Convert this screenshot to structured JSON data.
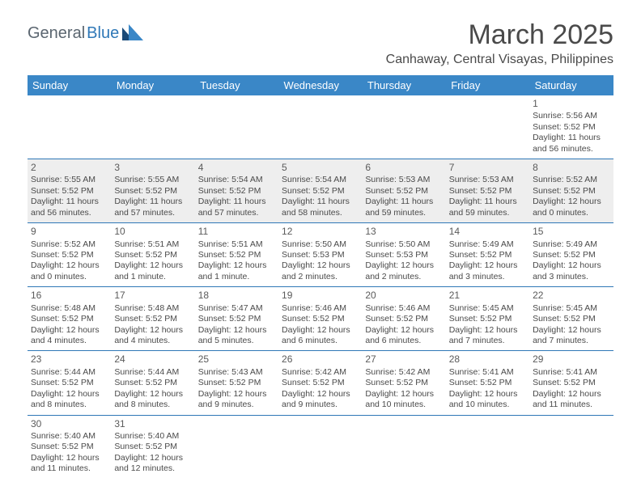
{
  "logo": {
    "text1": "General",
    "text2": "Blue",
    "mark_dark": "#1a4a78",
    "mark_light": "#3a87c7"
  },
  "title": "March 2025",
  "subtitle": "Canhaway, Central Visayas, Philippines",
  "colors": {
    "header_bg": "#3a87c7",
    "header_text": "#ffffff",
    "border": "#2f78b7",
    "blank_bg": "#eeeeee",
    "body_text": "#4a4a4a"
  },
  "weekdays": [
    "Sunday",
    "Monday",
    "Tuesday",
    "Wednesday",
    "Thursday",
    "Friday",
    "Saturday"
  ],
  "weeks": [
    [
      null,
      null,
      null,
      null,
      null,
      null,
      {
        "day": "1",
        "sunrise": "Sunrise: 5:56 AM",
        "sunset": "Sunset: 5:52 PM",
        "daylight": "Daylight: 11 hours and 56 minutes."
      }
    ],
    [
      {
        "day": "2",
        "sunrise": "Sunrise: 5:55 AM",
        "sunset": "Sunset: 5:52 PM",
        "daylight": "Daylight: 11 hours and 56 minutes."
      },
      {
        "day": "3",
        "sunrise": "Sunrise: 5:55 AM",
        "sunset": "Sunset: 5:52 PM",
        "daylight": "Daylight: 11 hours and 57 minutes."
      },
      {
        "day": "4",
        "sunrise": "Sunrise: 5:54 AM",
        "sunset": "Sunset: 5:52 PM",
        "daylight": "Daylight: 11 hours and 57 minutes."
      },
      {
        "day": "5",
        "sunrise": "Sunrise: 5:54 AM",
        "sunset": "Sunset: 5:52 PM",
        "daylight": "Daylight: 11 hours and 58 minutes."
      },
      {
        "day": "6",
        "sunrise": "Sunrise: 5:53 AM",
        "sunset": "Sunset: 5:52 PM",
        "daylight": "Daylight: 11 hours and 59 minutes."
      },
      {
        "day": "7",
        "sunrise": "Sunrise: 5:53 AM",
        "sunset": "Sunset: 5:52 PM",
        "daylight": "Daylight: 11 hours and 59 minutes."
      },
      {
        "day": "8",
        "sunrise": "Sunrise: 5:52 AM",
        "sunset": "Sunset: 5:52 PM",
        "daylight": "Daylight: 12 hours and 0 minutes."
      }
    ],
    [
      {
        "day": "9",
        "sunrise": "Sunrise: 5:52 AM",
        "sunset": "Sunset: 5:52 PM",
        "daylight": "Daylight: 12 hours and 0 minutes."
      },
      {
        "day": "10",
        "sunrise": "Sunrise: 5:51 AM",
        "sunset": "Sunset: 5:52 PM",
        "daylight": "Daylight: 12 hours and 1 minute."
      },
      {
        "day": "11",
        "sunrise": "Sunrise: 5:51 AM",
        "sunset": "Sunset: 5:52 PM",
        "daylight": "Daylight: 12 hours and 1 minute."
      },
      {
        "day": "12",
        "sunrise": "Sunrise: 5:50 AM",
        "sunset": "Sunset: 5:53 PM",
        "daylight": "Daylight: 12 hours and 2 minutes."
      },
      {
        "day": "13",
        "sunrise": "Sunrise: 5:50 AM",
        "sunset": "Sunset: 5:53 PM",
        "daylight": "Daylight: 12 hours and 2 minutes."
      },
      {
        "day": "14",
        "sunrise": "Sunrise: 5:49 AM",
        "sunset": "Sunset: 5:52 PM",
        "daylight": "Daylight: 12 hours and 3 minutes."
      },
      {
        "day": "15",
        "sunrise": "Sunrise: 5:49 AM",
        "sunset": "Sunset: 5:52 PM",
        "daylight": "Daylight: 12 hours and 3 minutes."
      }
    ],
    [
      {
        "day": "16",
        "sunrise": "Sunrise: 5:48 AM",
        "sunset": "Sunset: 5:52 PM",
        "daylight": "Daylight: 12 hours and 4 minutes."
      },
      {
        "day": "17",
        "sunrise": "Sunrise: 5:48 AM",
        "sunset": "Sunset: 5:52 PM",
        "daylight": "Daylight: 12 hours and 4 minutes."
      },
      {
        "day": "18",
        "sunrise": "Sunrise: 5:47 AM",
        "sunset": "Sunset: 5:52 PM",
        "daylight": "Daylight: 12 hours and 5 minutes."
      },
      {
        "day": "19",
        "sunrise": "Sunrise: 5:46 AM",
        "sunset": "Sunset: 5:52 PM",
        "daylight": "Daylight: 12 hours and 6 minutes."
      },
      {
        "day": "20",
        "sunrise": "Sunrise: 5:46 AM",
        "sunset": "Sunset: 5:52 PM",
        "daylight": "Daylight: 12 hours and 6 minutes."
      },
      {
        "day": "21",
        "sunrise": "Sunrise: 5:45 AM",
        "sunset": "Sunset: 5:52 PM",
        "daylight": "Daylight: 12 hours and 7 minutes."
      },
      {
        "day": "22",
        "sunrise": "Sunrise: 5:45 AM",
        "sunset": "Sunset: 5:52 PM",
        "daylight": "Daylight: 12 hours and 7 minutes."
      }
    ],
    [
      {
        "day": "23",
        "sunrise": "Sunrise: 5:44 AM",
        "sunset": "Sunset: 5:52 PM",
        "daylight": "Daylight: 12 hours and 8 minutes."
      },
      {
        "day": "24",
        "sunrise": "Sunrise: 5:44 AM",
        "sunset": "Sunset: 5:52 PM",
        "daylight": "Daylight: 12 hours and 8 minutes."
      },
      {
        "day": "25",
        "sunrise": "Sunrise: 5:43 AM",
        "sunset": "Sunset: 5:52 PM",
        "daylight": "Daylight: 12 hours and 9 minutes."
      },
      {
        "day": "26",
        "sunrise": "Sunrise: 5:42 AM",
        "sunset": "Sunset: 5:52 PM",
        "daylight": "Daylight: 12 hours and 9 minutes."
      },
      {
        "day": "27",
        "sunrise": "Sunrise: 5:42 AM",
        "sunset": "Sunset: 5:52 PM",
        "daylight": "Daylight: 12 hours and 10 minutes."
      },
      {
        "day": "28",
        "sunrise": "Sunrise: 5:41 AM",
        "sunset": "Sunset: 5:52 PM",
        "daylight": "Daylight: 12 hours and 10 minutes."
      },
      {
        "day": "29",
        "sunrise": "Sunrise: 5:41 AM",
        "sunset": "Sunset: 5:52 PM",
        "daylight": "Daylight: 12 hours and 11 minutes."
      }
    ],
    [
      {
        "day": "30",
        "sunrise": "Sunrise: 5:40 AM",
        "sunset": "Sunset: 5:52 PM",
        "daylight": "Daylight: 12 hours and 11 minutes."
      },
      {
        "day": "31",
        "sunrise": "Sunrise: 5:40 AM",
        "sunset": "Sunset: 5:52 PM",
        "daylight": "Daylight: 12 hours and 12 minutes."
      },
      null,
      null,
      null,
      null,
      null
    ]
  ]
}
